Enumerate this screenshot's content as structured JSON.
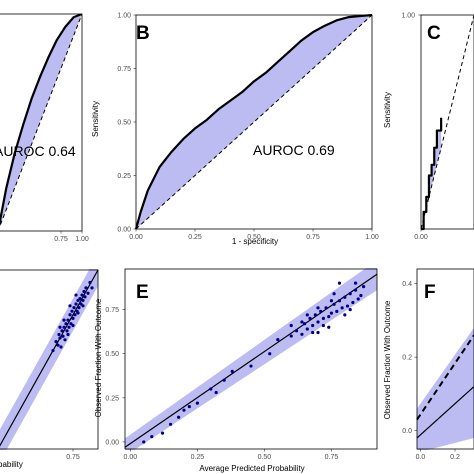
{
  "chart_data": [
    {
      "type": "line",
      "panel": "A",
      "panel_label": "",
      "xlabel": "",
      "ylabel": "",
      "x_ticks": [
        "0.75",
        "1.00"
      ],
      "y_ticks": [],
      "xlim": [
        0,
        1
      ],
      "ylim": [
        0,
        1
      ],
      "annotation": "AUROC 0.64",
      "series": [
        {
          "kind": "roc",
          "x": [
            0.0,
            0.1,
            0.2,
            0.3,
            0.4,
            0.5,
            0.6,
            0.7,
            0.8,
            0.9,
            1.0
          ],
          "y": [
            0.0,
            0.2,
            0.36,
            0.49,
            0.61,
            0.71,
            0.8,
            0.88,
            0.94,
            0.985,
            1.0
          ]
        },
        {
          "kind": "reference",
          "x": [
            0,
            1
          ],
          "y": [
            0,
            1
          ]
        }
      ],
      "fill_color": "#bcbcf2"
    },
    {
      "type": "line",
      "panel": "B",
      "panel_label": "B",
      "xlabel": "1 - specificity",
      "ylabel": "Sensitivity",
      "x_ticks": [
        "0.00",
        "0.25",
        "0.50",
        "0.75",
        "1.00"
      ],
      "y_ticks": [
        "0.00",
        "0.25",
        "0.50",
        "0.75",
        "1.00"
      ],
      "xlim": [
        0,
        1
      ],
      "ylim": [
        0,
        1
      ],
      "annotation": "AUROC 0.69",
      "series": [
        {
          "kind": "roc",
          "x": [
            0.0,
            0.02,
            0.05,
            0.1,
            0.15,
            0.2,
            0.25,
            0.3,
            0.35,
            0.4,
            0.45,
            0.5,
            0.55,
            0.6,
            0.65,
            0.7,
            0.75,
            0.8,
            0.85,
            0.9,
            0.95,
            1.0
          ],
          "y": [
            0.0,
            0.08,
            0.18,
            0.29,
            0.36,
            0.42,
            0.47,
            0.51,
            0.56,
            0.6,
            0.64,
            0.69,
            0.73,
            0.78,
            0.83,
            0.88,
            0.92,
            0.95,
            0.975,
            0.99,
            0.995,
            1.0
          ]
        },
        {
          "kind": "reference",
          "x": [
            0,
            1
          ],
          "y": [
            0,
            1
          ]
        }
      ],
      "fill_color": "#bcbcf2"
    },
    {
      "type": "line",
      "panel": "C",
      "panel_label": "C",
      "xlabel": "",
      "ylabel": "Sensitivity",
      "x_ticks": [
        "0.00"
      ],
      "y_ticks": [
        "1.00"
      ],
      "xlim": [
        0,
        1
      ],
      "ylim": [
        0,
        1
      ],
      "annotation": "",
      "series": [
        {
          "kind": "roc",
          "x": [
            0.0,
            0.05,
            0.05,
            0.1,
            0.1,
            0.15,
            0.15,
            0.2,
            0.2,
            0.25,
            0.25,
            0.3,
            0.3,
            0.38,
            0.38
          ],
          "y": [
            0.0,
            0.0,
            0.08,
            0.08,
            0.15,
            0.15,
            0.25,
            0.25,
            0.3,
            0.3,
            0.38,
            0.38,
            0.46,
            0.46,
            0.52
          ]
        },
        {
          "kind": "reference",
          "x": [
            0,
            1
          ],
          "y": [
            0,
            1
          ]
        }
      ],
      "fill_color": "#bcbcf2"
    },
    {
      "type": "scatter",
      "panel": "D",
      "panel_label": "",
      "xlabel": "bability",
      "ylabel": "",
      "x_ticks": [
        "0.75"
      ],
      "y_ticks": [],
      "xlim": [
        0,
        1
      ],
      "ylim": [
        0,
        1
      ],
      "annotation": "",
      "points": [
        [
          0.55,
          0.55
        ],
        [
          0.58,
          0.6
        ],
        [
          0.6,
          0.58
        ],
        [
          0.61,
          0.64
        ],
        [
          0.62,
          0.62
        ],
        [
          0.63,
          0.57
        ],
        [
          0.64,
          0.66
        ],
        [
          0.65,
          0.63
        ],
        [
          0.66,
          0.68
        ],
        [
          0.67,
          0.61
        ],
        [
          0.68,
          0.7
        ],
        [
          0.69,
          0.66
        ],
        [
          0.7,
          0.72
        ],
        [
          0.71,
          0.68
        ],
        [
          0.72,
          0.75
        ],
        [
          0.73,
          0.7
        ],
        [
          0.74,
          0.77
        ],
        [
          0.75,
          0.73
        ],
        [
          0.76,
          0.79
        ],
        [
          0.77,
          0.75
        ],
        [
          0.78,
          0.81
        ],
        [
          0.79,
          0.77
        ],
        [
          0.8,
          0.83
        ],
        [
          0.81,
          0.79
        ],
        [
          0.82,
          0.84
        ],
        [
          0.83,
          0.81
        ],
        [
          0.84,
          0.86
        ],
        [
          0.85,
          0.83
        ],
        [
          0.86,
          0.88
        ],
        [
          0.87,
          0.85
        ],
        [
          0.88,
          0.9
        ],
        [
          0.9,
          0.87
        ],
        [
          0.92,
          0.93
        ],
        [
          0.94,
          0.9
        ],
        [
          0.7,
          0.64
        ],
        [
          0.75,
          0.69
        ],
        [
          0.8,
          0.76
        ],
        [
          0.85,
          0.8
        ],
        [
          0.66,
          0.72
        ],
        [
          0.72,
          0.8
        ],
        [
          0.78,
          0.86
        ],
        [
          0.62,
          0.68
        ]
      ],
      "fit": {
        "x": [
          0,
          1
        ],
        "y": [
          0,
          1
        ]
      },
      "band": {
        "x": [
          0,
          1
        ],
        "lower": [
          -0.09,
          0.91
        ],
        "upper": [
          0.09,
          1.09
        ]
      },
      "fill_color": "#bcbcf2"
    },
    {
      "type": "scatter",
      "panel": "E",
      "panel_label": "E",
      "xlabel": "Average Predicted Probability",
      "ylabel": "Observed Fraction With Outcome",
      "x_ticks": [
        "0.00",
        "0.25",
        "0.50",
        "0.75"
      ],
      "y_ticks": [
        "0.00",
        "0.25",
        "0.50",
        "0.75"
      ],
      "xlim": [
        -0.02,
        0.92
      ],
      "ylim": [
        -0.04,
        0.98
      ],
      "annotation": "",
      "points": [
        [
          0.05,
          0.0
        ],
        [
          0.08,
          0.03
        ],
        [
          0.12,
          0.05
        ],
        [
          0.15,
          0.1
        ],
        [
          0.18,
          0.14
        ],
        [
          0.2,
          0.18
        ],
        [
          0.22,
          0.2
        ],
        [
          0.25,
          0.22
        ],
        [
          0.3,
          0.3
        ],
        [
          0.32,
          0.28
        ],
        [
          0.35,
          0.35
        ],
        [
          0.38,
          0.4
        ],
        [
          0.45,
          0.43
        ],
        [
          0.52,
          0.5
        ],
        [
          0.55,
          0.58
        ],
        [
          0.6,
          0.6
        ],
        [
          0.62,
          0.63
        ],
        [
          0.64,
          0.61
        ],
        [
          0.65,
          0.67
        ],
        [
          0.66,
          0.64
        ],
        [
          0.67,
          0.7
        ],
        [
          0.68,
          0.66
        ],
        [
          0.69,
          0.72
        ],
        [
          0.7,
          0.68
        ],
        [
          0.71,
          0.74
        ],
        [
          0.72,
          0.7
        ],
        [
          0.73,
          0.76
        ],
        [
          0.74,
          0.71
        ],
        [
          0.75,
          0.73
        ],
        [
          0.76,
          0.78
        ],
        [
          0.77,
          0.74
        ],
        [
          0.78,
          0.8
        ],
        [
          0.79,
          0.76
        ],
        [
          0.8,
          0.82
        ],
        [
          0.81,
          0.77
        ],
        [
          0.82,
          0.84
        ],
        [
          0.83,
          0.79
        ],
        [
          0.84,
          0.86
        ],
        [
          0.85,
          0.81
        ],
        [
          0.86,
          0.83
        ],
        [
          0.87,
          0.88
        ],
        [
          0.78,
          0.9
        ],
        [
          0.74,
          0.65
        ],
        [
          0.7,
          0.76
        ],
        [
          0.68,
          0.62
        ],
        [
          0.8,
          0.72
        ],
        [
          0.66,
          0.72
        ],
        [
          0.72,
          0.66
        ],
        [
          0.76,
          0.84
        ],
        [
          0.82,
          0.75
        ],
        [
          0.64,
          0.68
        ],
        [
          0.6,
          0.66
        ],
        [
          0.84,
          0.9
        ],
        [
          0.75,
          0.8
        ],
        [
          0.7,
          0.62
        ]
      ],
      "fit": {
        "x": [
          -0.02,
          0.92
        ],
        "y": [
          -0.03,
          0.95
        ]
      },
      "band": {
        "x": [
          -0.02,
          0.92
        ],
        "lower": [
          -0.08,
          0.86
        ],
        "upper": [
          0.02,
          1.03
        ]
      },
      "fill_color": "#bcbcf2"
    },
    {
      "type": "scatter",
      "panel": "F",
      "panel_label": "F",
      "xlabel": "",
      "ylabel": "Observed Fraction With Outcome",
      "x_ticks": [
        "0.0",
        "0.2"
      ],
      "y_ticks": [
        "0.0",
        "0.2",
        "0.4"
      ],
      "xlim": [
        -0.02,
        0.31
      ],
      "ylim": [
        -0.05,
        0.44
      ],
      "annotation": "",
      "points": [],
      "fit": {
        "x": [
          -0.02,
          0.31
        ],
        "y": [
          -0.02,
          0.12
        ]
      },
      "reference": {
        "x": [
          -0.02,
          0.31
        ],
        "y": [
          0.03,
          0.26
        ]
      },
      "band": {
        "x": [
          -0.02,
          0.31
        ],
        "lower": [
          -0.06,
          -0.02
        ],
        "upper": [
          0.06,
          0.28
        ]
      },
      "fill_color": "#bcbcf2"
    }
  ]
}
